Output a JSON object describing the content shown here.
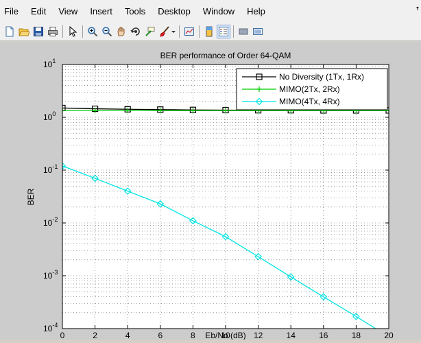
{
  "menu": {
    "items": [
      "File",
      "Edit",
      "View",
      "Insert",
      "Tools",
      "Desktop",
      "Window",
      "Help"
    ],
    "corner_glyph": "ꜛ"
  },
  "toolbar": {
    "icons": [
      "new-figure-icon",
      "open-file-icon",
      "save-icon",
      "print-icon",
      "pointer-icon",
      "zoom-in-icon",
      "zoom-out-icon",
      "pan-icon",
      "rotate-3d-icon",
      "data-cursor-icon",
      "brush-icon",
      "link-plot-icon",
      "colorbar-icon",
      "legend-icon",
      "hide-plot-tools-icon",
      "show-plot-tools-icon"
    ]
  },
  "chart_data": {
    "type": "line",
    "title": "BER performance of Order 64-QAM",
    "xlabel": "Eb/No (dB)",
    "ylabel": "BER",
    "xlim": [
      0,
      20
    ],
    "ylim": [
      0.0001,
      10
    ],
    "yscale": "log",
    "grid": "on (major and minor, dotted)",
    "legend_placement": "top-right",
    "x_ticks": [
      "0",
      "2",
      "4",
      "6",
      "8",
      "10",
      "12",
      "14",
      "16",
      "18",
      "20"
    ],
    "y_ticks": [
      {
        "base": "10",
        "exp": "1"
      },
      {
        "base": "10",
        "exp": "0"
      },
      {
        "base": "10",
        "exp": "-1"
      },
      {
        "base": "10",
        "exp": "-2"
      },
      {
        "base": "10",
        "exp": "-3"
      },
      {
        "base": "10",
        "exp": "-4"
      }
    ],
    "series": [
      {
        "name": "No Diversity (1Tx, 1Rx)",
        "color": "#000000",
        "marker": "square",
        "x": [
          0,
          2,
          4,
          6,
          8,
          10,
          12,
          14,
          16,
          18,
          20
        ],
        "values": [
          1.5,
          1.45,
          1.42,
          1.4,
          1.38,
          1.37,
          1.36,
          1.36,
          1.35,
          1.35,
          1.35
        ]
      },
      {
        "name": "MIMO(2Tx, 2Rx)",
        "color": "#00cc00",
        "marker": "plus",
        "x": [
          0,
          2,
          4,
          6,
          8,
          10,
          12,
          14,
          16,
          18,
          20
        ],
        "values": [
          1.35,
          1.35,
          1.35,
          1.34,
          1.34,
          1.34,
          1.34,
          1.34,
          1.34,
          1.34,
          1.34
        ]
      },
      {
        "name": "MIMO(4Tx, 4Rx)",
        "color": "#00e5e5",
        "marker": "diamond",
        "x": [
          0,
          2,
          4,
          6,
          8,
          10,
          12,
          14,
          16,
          18,
          20
        ],
        "values": [
          0.12,
          0.07,
          0.04,
          0.023,
          0.011,
          0.0055,
          0.0023,
          0.00095,
          0.0004,
          0.00017,
          7e-05
        ]
      }
    ]
  }
}
